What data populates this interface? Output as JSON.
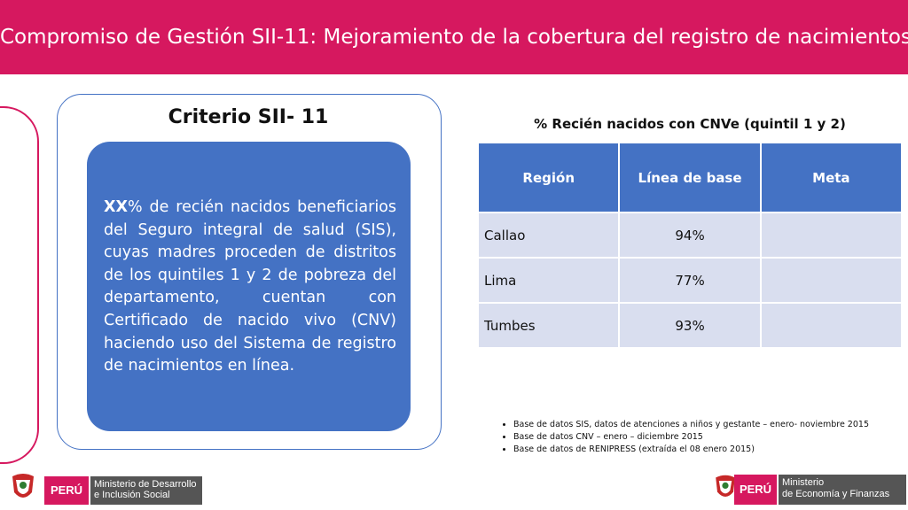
{
  "header": {
    "title": "Compromiso de Gestión SII-11: Mejoramiento de la cobertura del registro de nacimientos"
  },
  "criterio": {
    "title": "Criterio SII- 11",
    "text_bold": "XX",
    "text": "% de recién nacidos beneficiarios del Seguro integral de salud (SIS), cuyas madres proceden de distritos de los quintiles 1 y 2 de pobreza del departamento, cuentan con Certificado de nacido vivo (CNV) haciendo uso del Sistema de registro de nacimientos en línea."
  },
  "table": {
    "title": "% Recién nacidos con CNVe (quintil 1 y 2)",
    "headers": [
      "Región",
      "Línea de base",
      "Meta"
    ],
    "rows": [
      {
        "region": "Callao",
        "base": "94%",
        "meta": ""
      },
      {
        "region": "Lima",
        "base": "77%",
        "meta": ""
      },
      {
        "region": "Tumbes",
        "base": "93%",
        "meta": ""
      }
    ]
  },
  "notes": [
    "Base de datos SIS, datos de atenciones a niños y gestante – enero- noviembre 2015",
    "Base de datos CNV – enero – diciembre 2015",
    "Base de datos de RENIPRESS (extraída el 08 enero 2015)"
  ],
  "logos": {
    "left": {
      "country": "PERÚ",
      "ministry_line1": "Ministerio de Desarrollo",
      "ministry_line2": "e Inclusión Social"
    },
    "right": {
      "country": "PERÚ",
      "ministry_line1": "Ministerio",
      "ministry_line2": "de Economía y Finanzas"
    }
  },
  "colors": {
    "header": "#d6185f",
    "accent": "#4472c4",
    "table_cell": "#d9deef"
  }
}
